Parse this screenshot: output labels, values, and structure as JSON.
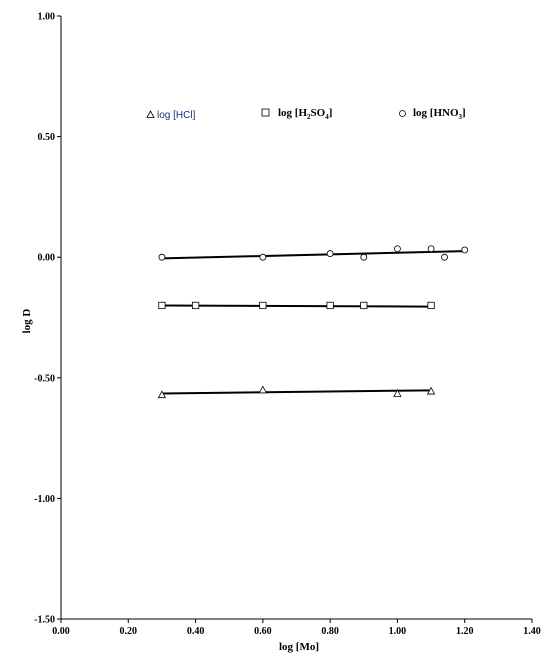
{
  "chart_data": {
    "type": "scatter",
    "title": "",
    "xlabel": "log [Mo]",
    "ylabel": "log D",
    "xlim": [
      0.0,
      1.4
    ],
    "ylim": [
      -1.5,
      1.0
    ],
    "x_ticks": [
      "0.00",
      "0.20",
      "0.40",
      "0.60",
      "0.80",
      "1.00",
      "1.20",
      "1.40"
    ],
    "y_ticks": [
      "1.00",
      "0.50",
      "0.00",
      "-0.50",
      "-1.00",
      "-1.50"
    ],
    "x_tick_values": [
      0.0,
      0.2,
      0.4,
      0.6,
      0.8,
      1.0,
      1.2,
      1.4
    ],
    "y_tick_values": [
      1.0,
      0.5,
      0.0,
      -0.5,
      -1.0,
      -1.5
    ],
    "grid": false,
    "legend_position": "top",
    "series": [
      {
        "name": "log [HCl]",
        "marker": "triangle",
        "color": "#000000",
        "x": [
          0.3,
          0.6,
          1.0,
          1.1
        ],
        "y": [
          -0.57,
          -0.55,
          -0.565,
          -0.555
        ],
        "fit": {
          "x": [
            0.3,
            1.1
          ],
          "y": [
            -0.565,
            -0.552
          ]
        }
      },
      {
        "name": "log [H2SO4]",
        "marker": "square",
        "color": "#000000",
        "x": [
          0.3,
          0.4,
          0.6,
          0.8,
          0.9,
          1.1
        ],
        "y": [
          -0.2,
          -0.2,
          -0.2,
          -0.2,
          -0.2,
          -0.2
        ],
        "fit": {
          "x": [
            0.3,
            1.1
          ],
          "y": [
            -0.2,
            -0.205
          ]
        }
      },
      {
        "name": "log [HNO3]",
        "marker": "circle",
        "color": "#000000",
        "x": [
          0.3,
          0.6,
          0.8,
          0.9,
          1.0,
          1.1,
          1.14,
          1.2
        ],
        "y": [
          0.0,
          0.0,
          0.015,
          0.0,
          0.035,
          0.035,
          0.0,
          0.03
        ],
        "fit": {
          "x": [
            0.3,
            1.2
          ],
          "y": [
            -0.005,
            0.025
          ]
        }
      }
    ]
  }
}
